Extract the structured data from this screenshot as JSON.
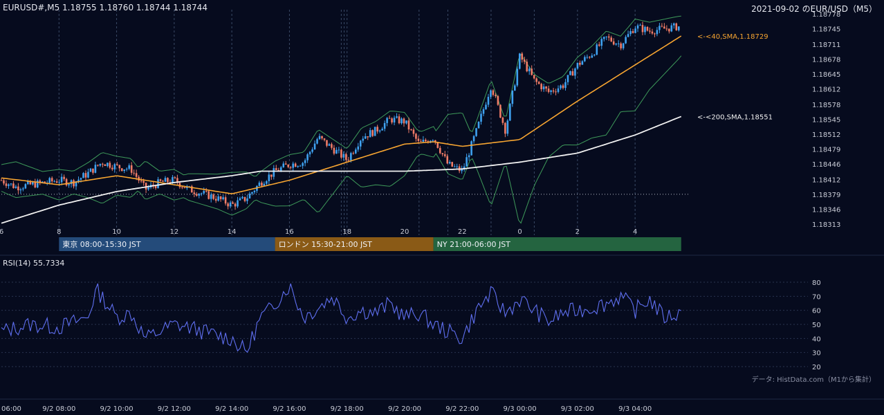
{
  "header": {
    "symbol_ohlc": "EURUSD#,M5 1.18755 1.18760 1.18744 1.18744",
    "date_label": "2021-09-02 のEUR/USD（M5）"
  },
  "rsi": {
    "label": "RSI(14) 55.7334"
  },
  "source_note": "データ: HistData.com（M1から集計）",
  "colors": {
    "background": "#060b1e",
    "candle_up": "#3fa2f0",
    "candle_down": "#f07c67",
    "sma40": "#f7a531",
    "sma200": "#f2f2f2",
    "bollinger": "#3e9a5a",
    "rsi_line": "#5f6ff0",
    "tokyo_session": "#244b7a",
    "london_session": "#8a5a16",
    "ny_session": "#246440"
  },
  "chart_data": [
    {
      "type": "line",
      "title": "EURUSD#,M5",
      "ylim": [
        1.18313,
        1.18778
      ],
      "y_ticks": [
        "1.18778",
        "1.18745",
        "1.18711",
        "1.18678",
        "1.18645",
        "1.18612",
        "1.18578",
        "1.18545",
        "1.18512",
        "1.18479",
        "1.18446",
        "1.18412",
        "1.18379",
        "1.18346",
        "1.18313"
      ],
      "x_ticks": [
        "6",
        "8",
        "10",
        "12",
        "14",
        "16",
        "18",
        "20",
        "22",
        "0",
        "2",
        "4"
      ],
      "x_bottom_labels": [
        "06:00",
        "9/2 08:00",
        "9/2 10:00",
        "9/2 12:00",
        "9/2 14:00",
        "9/2 16:00",
        "9/2 18:00",
        "9/2 20:00",
        "9/2 22:00",
        "9/3 00:00",
        "9/3 02:00",
        "9/3 04:00"
      ],
      "x_start_hour": 6,
      "x_end_hour": 29.6,
      "reference_level": 1.18379,
      "close_series_key_times": [
        6,
        6.5,
        7,
        7.5,
        8,
        8.5,
        9,
        9.5,
        10,
        10.5,
        11,
        11.5,
        12,
        12.5,
        13,
        13.5,
        14,
        14.5,
        15,
        15.5,
        16,
        16.5,
        17,
        17.5,
        18,
        18.5,
        19,
        19.5,
        20,
        20.5,
        21,
        21.5,
        22,
        22.5,
        23,
        23.5,
        24,
        24.5,
        25,
        25.5,
        26,
        26.5,
        27,
        27.5,
        28,
        28.5,
        29,
        29.5
      ],
      "close_series_key_values": [
        1.1841,
        1.18395,
        1.184,
        1.18405,
        1.1841,
        1.18405,
        1.18425,
        1.1845,
        1.1844,
        1.18435,
        1.1839,
        1.18405,
        1.1841,
        1.1839,
        1.1838,
        1.1837,
        1.18355,
        1.1837,
        1.18405,
        1.1843,
        1.18445,
        1.1845,
        1.18505,
        1.1848,
        1.18455,
        1.18505,
        1.1852,
        1.18545,
        1.1854,
        1.1849,
        1.18505,
        1.18445,
        1.1843,
        1.1852,
        1.1862,
        1.1852,
        1.18685,
        1.1863,
        1.18605,
        1.1862,
        1.18665,
        1.1869,
        1.18725,
        1.1871,
        1.1875,
        1.1874,
        1.18745,
        1.1875
      ],
      "series": [
        {
          "name": "40,SMA,1.18729",
          "label": "<-<40,SMA,1.18729",
          "end_value": 1.18729,
          "key_times": [
            6,
            8,
            10,
            12,
            14,
            16,
            18,
            20,
            21,
            22,
            24,
            26,
            28,
            29.6
          ],
          "key_values": [
            1.18415,
            1.184,
            1.1842,
            1.184,
            1.1838,
            1.1841,
            1.1845,
            1.1849,
            1.18495,
            1.18485,
            1.185,
            1.18585,
            1.18665,
            1.18729
          ]
        },
        {
          "name": "200,SMA,1.18551",
          "label": "<-<200,SMA,1.18551",
          "end_value": 1.18551,
          "key_times": [
            6,
            8,
            10,
            12,
            14,
            15,
            18,
            20,
            22,
            24,
            26,
            28,
            29.6
          ],
          "key_values": [
            1.18315,
            1.18355,
            1.18385,
            1.18405,
            1.1842,
            1.1843,
            1.1843,
            1.1843,
            1.18435,
            1.1845,
            1.1847,
            1.1851,
            1.18551
          ]
        }
      ],
      "sessions": [
        {
          "label": "東京 08:00-15:30 JST",
          "start_hour": 8,
          "end_hour": 15.5
        },
        {
          "label": "ロンドン 15:30-21:00 JST",
          "start_hour": 15.5,
          "end_hour": 21
        },
        {
          "label": "NY 21:00-06:00 JST",
          "start_hour": 21,
          "end_hour": 29.6
        }
      ],
      "dashed_vlines_hours": [
        8,
        10,
        12,
        14,
        16,
        17.8,
        17.9,
        18,
        20.5,
        21.5,
        23,
        24.5,
        26,
        28
      ]
    },
    {
      "type": "line",
      "title": "RSI(14) 55.7334",
      "ylim": [
        20,
        80
      ],
      "y_ticks": [
        "80",
        "70",
        "60",
        "50",
        "40",
        "30",
        "20"
      ],
      "key_times": [
        6,
        7,
        8,
        9,
        9.3,
        10,
        10.5,
        11,
        11.5,
        12,
        12.5,
        13,
        13.5,
        14,
        14.5,
        15,
        15.3,
        16,
        16.5,
        17,
        17.5,
        18,
        18.5,
        19,
        19.5,
        20,
        20.5,
        21,
        21.5,
        22,
        22.5,
        23,
        23.5,
        24,
        24.5,
        25,
        25.5,
        26,
        26.5,
        27,
        27.5,
        28,
        28.5,
        29,
        29.6
      ],
      "values": [
        45,
        50,
        48,
        55,
        75,
        55,
        58,
        40,
        45,
        50,
        48,
        45,
        42,
        40,
        30,
        55,
        60,
        78,
        55,
        62,
        70,
        55,
        60,
        58,
        65,
        55,
        58,
        50,
        45,
        40,
        60,
        72,
        58,
        68,
        60,
        52,
        58,
        60,
        62,
        65,
        70,
        60,
        68,
        55,
        58
      ]
    }
  ]
}
